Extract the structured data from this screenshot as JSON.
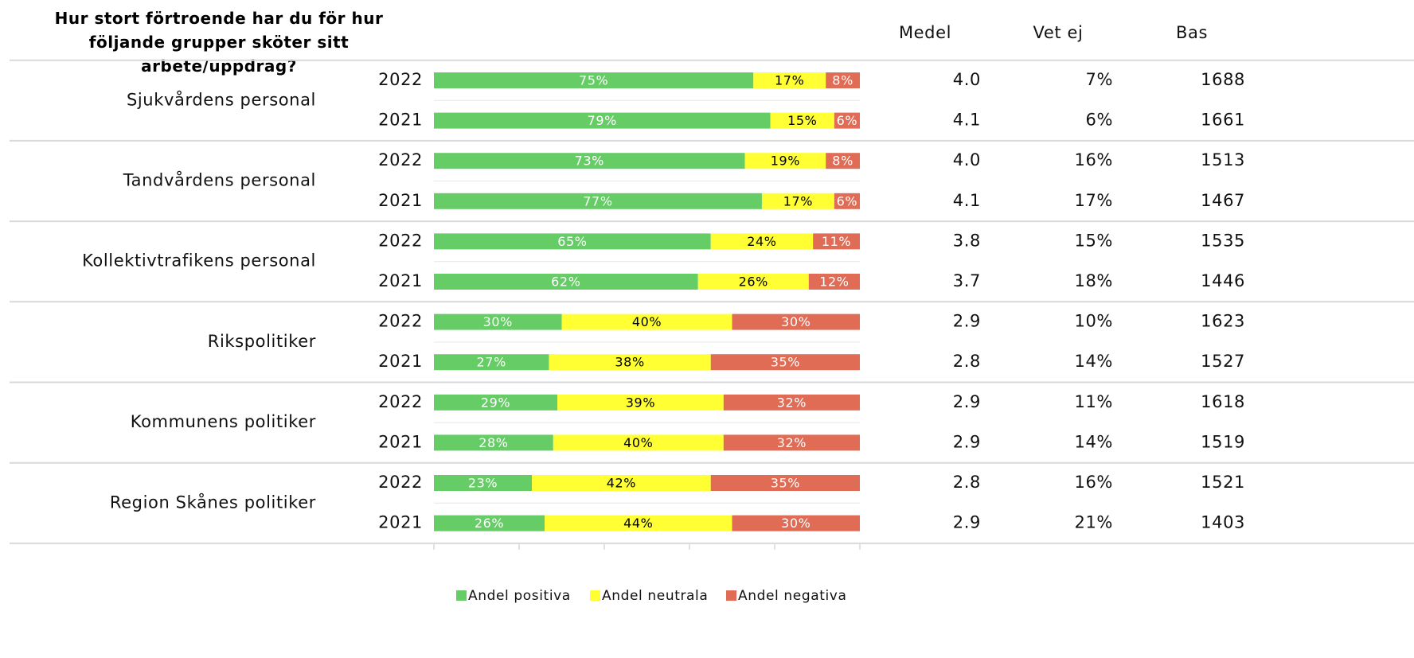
{
  "chart_data": {
    "type": "stacked-bar",
    "title": "Hur stort förtroende har du för hur följande grupper sköter sitt arbete/uppdrag?",
    "groups": [
      "Sjukvårdens personal",
      "Tandvårdens personal",
      "Kollektivtrafikens personal",
      "Rikspolitiker",
      "Kommunens politiker",
      "Region Skånes politiker"
    ],
    "categories": [
      "2022",
      "2021",
      "2022",
      "2021",
      "2022",
      "2021",
      "2022",
      "2021",
      "2022",
      "2021",
      "2022",
      "2021"
    ],
    "series": [
      {
        "name": "Andel positiva",
        "color": "#66cc66",
        "label_color": "#ffffff",
        "values": [
          75,
          79,
          73,
          77,
          65,
          62,
          30,
          27,
          29,
          28,
          23,
          26
        ],
        "value_labels": [
          "75%",
          "79%",
          "73%",
          "77%",
          "65%",
          "62%",
          "30%",
          "27%",
          "29%",
          "28%",
          "23%",
          "26%"
        ]
      },
      {
        "name": "Andel neutrala",
        "color": "#ffff33",
        "label_color": "#000000",
        "values": [
          17,
          15,
          19,
          17,
          24,
          26,
          40,
          38,
          39,
          40,
          42,
          44
        ],
        "value_labels": [
          "17%",
          "15%",
          "19%",
          "17%",
          "24%",
          "26%",
          "40%",
          "38%",
          "39%",
          "40%",
          "42%",
          "44%"
        ]
      },
      {
        "name": "Andel negativa",
        "color": "#e06c55",
        "label_color": "#ffffff",
        "values": [
          8,
          6,
          8,
          6,
          11,
          12,
          30,
          35,
          32,
          32,
          35,
          30
        ],
        "value_labels": [
          "8%",
          "6%",
          "8%",
          "6%",
          "11%",
          "12%",
          "30%",
          "35%",
          "32%",
          "32%",
          "35%",
          "30%"
        ]
      }
    ],
    "xlim": [
      0,
      100
    ],
    "xticks": [
      0,
      20,
      40,
      60,
      80,
      100
    ],
    "legend": "bottom"
  },
  "table": {
    "headers": [
      "Medel",
      "Vet ej",
      "Bas"
    ],
    "rows": [
      [
        "4.0",
        "7%",
        "1688"
      ],
      [
        "4.1",
        "6%",
        "1661"
      ],
      [
        "4.0",
        "16%",
        "1513"
      ],
      [
        "4.1",
        "17%",
        "1467"
      ],
      [
        "3.8",
        "15%",
        "1535"
      ],
      [
        "3.7",
        "18%",
        "1446"
      ],
      [
        "2.9",
        "10%",
        "1623"
      ],
      [
        "2.8",
        "14%",
        "1527"
      ],
      [
        "2.9",
        "11%",
        "1618"
      ],
      [
        "2.9",
        "14%",
        "1519"
      ],
      [
        "2.8",
        "16%",
        "1521"
      ],
      [
        "2.9",
        "21%",
        "1403"
      ]
    ]
  }
}
